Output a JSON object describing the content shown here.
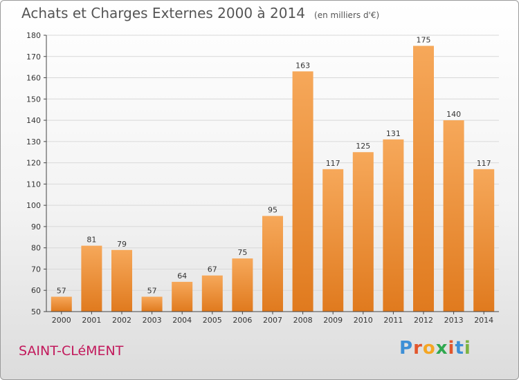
{
  "header": {
    "title": "Achats et Charges Externes 2000 à 2014",
    "unit": "(en milliers d'€)"
  },
  "footer": {
    "place": "SAINT-CLéMENT",
    "logo": "Proxiti"
  },
  "colors": {
    "bar_light": "#f6a85a",
    "bar_dark": "#e07a1e",
    "grid": "#d8d8d8",
    "axis": "#444444",
    "place": "#c2185b",
    "logo_letters": [
      "#3d8fd6",
      "#e2562c",
      "#f5a623",
      "#2fa84f",
      "#e2562c",
      "#3d8fd6",
      "#7cb342"
    ]
  },
  "chart_data": {
    "type": "bar",
    "categories": [
      "2000",
      "2001",
      "2002",
      "2003",
      "2004",
      "2005",
      "2006",
      "2007",
      "2008",
      "2009",
      "2010",
      "2011",
      "2012",
      "2013",
      "2014"
    ],
    "values": [
      57,
      81,
      79,
      57,
      64,
      67,
      75,
      95,
      163,
      117,
      125,
      131,
      175,
      140,
      117
    ],
    "ylim": [
      50,
      180
    ],
    "yticks": [
      50,
      60,
      70,
      80,
      90,
      100,
      110,
      120,
      130,
      140,
      150,
      160,
      170,
      180
    ],
    "grid": true,
    "data_labels": true
  }
}
